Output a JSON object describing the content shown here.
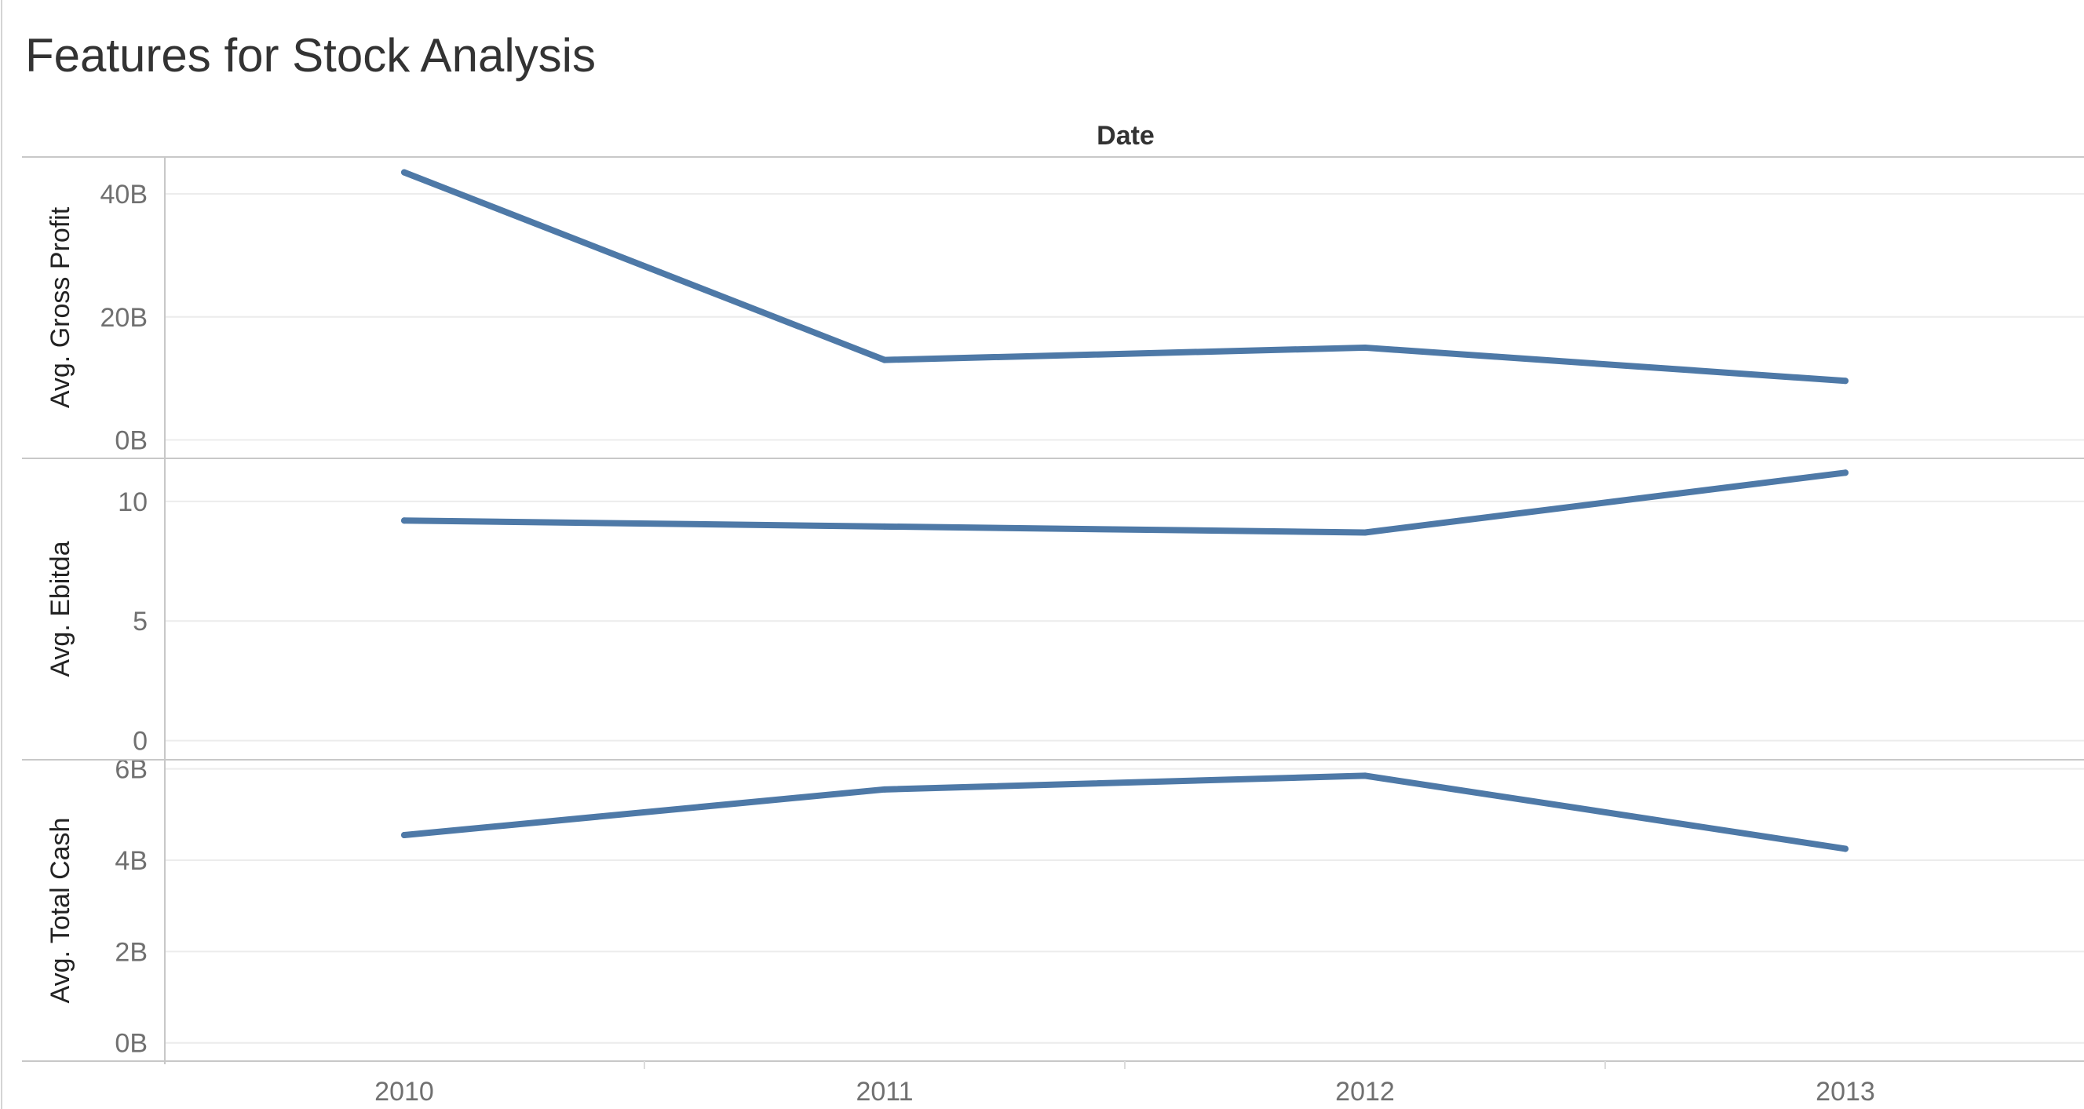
{
  "title": "Features for Stock Analysis",
  "chart_data": {
    "type": "line",
    "title": "Features for Stock Analysis",
    "column_header": "Date",
    "xlabel": "",
    "categories": [
      "2010",
      "2011",
      "2012",
      "2013"
    ],
    "line_color": "#4e79a7",
    "grid": true,
    "panes": [
      {
        "name": "Avg. Gross Profit",
        "ylabel": "Avg. Gross Profit",
        "ylim": [
          -3,
          46
        ],
        "ticks": [
          {
            "value": 0,
            "label": "0B"
          },
          {
            "value": 20,
            "label": "20B"
          },
          {
            "value": 40,
            "label": "40B"
          }
        ],
        "values": [
          43.5,
          13.0,
          15.0,
          9.6
        ]
      },
      {
        "name": "Avg. Ebitda",
        "ylabel": "Avg. Ebitda",
        "ylim": [
          -0.8,
          11.8
        ],
        "ticks": [
          {
            "value": 0,
            "label": "0"
          },
          {
            "value": 5,
            "label": "5"
          },
          {
            "value": 10,
            "label": "10"
          }
        ],
        "values": [
          9.2,
          8.95,
          8.7,
          11.2
        ]
      },
      {
        "name": "Avg. Total Cash",
        "ylabel": "Avg. Total Cash",
        "ylim": [
          -0.4,
          6.2
        ],
        "ticks": [
          {
            "value": 0,
            "label": "0B"
          },
          {
            "value": 2,
            "label": "2B"
          },
          {
            "value": 4,
            "label": "4B"
          },
          {
            "value": 6,
            "label": "6B"
          }
        ],
        "values": [
          4.55,
          5.55,
          5.85,
          4.25
        ]
      }
    ]
  }
}
